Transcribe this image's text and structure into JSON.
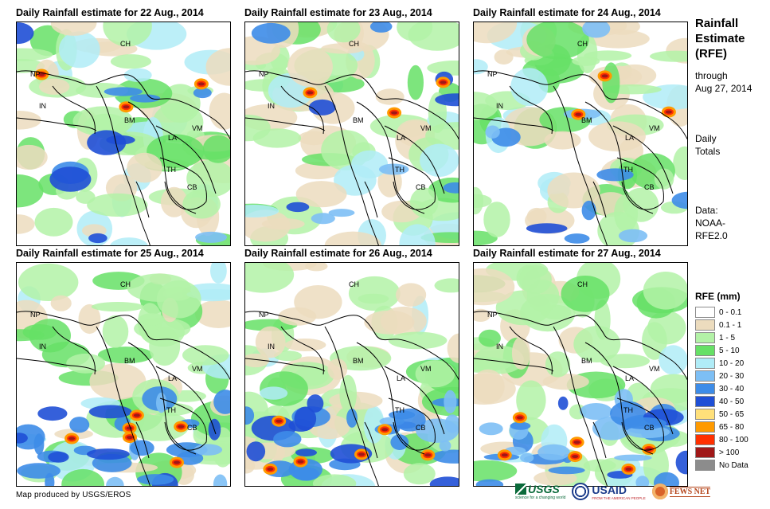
{
  "panels": [
    {
      "title": "Daily Rainfall estimate for 22 Aug., 2014"
    },
    {
      "title": "Daily Rainfall estimate for 23 Aug., 2014"
    },
    {
      "title": "Daily Rainfall estimate for 24 Aug., 2014"
    },
    {
      "title": "Daily Rainfall estimate for 25 Aug., 2014"
    },
    {
      "title": "Daily Rainfall estimate for 26 Aug., 2014"
    },
    {
      "title": "Daily Rainfall estimate for 27 Aug., 2014"
    }
  ],
  "countries": [
    "CH",
    "NP",
    "IN",
    "BM",
    "LA",
    "VM",
    "TH",
    "CB"
  ],
  "side": {
    "title_1": "Rainfall",
    "title_2": "Estimate",
    "title_3": "(RFE)",
    "through": "through",
    "date": "Aug 27, 2014",
    "daily": "Daily",
    "totals": "Totals",
    "data_label": "Data:",
    "source_1": "NOAA-",
    "source_2": "RFE2.0"
  },
  "legend": {
    "title": "RFE (mm)",
    "items": [
      {
        "label": "0 - 0.1",
        "color": "#ffffff"
      },
      {
        "label": "0.1 - 1",
        "color": "#ecdcbe"
      },
      {
        "label": "1 - 5",
        "color": "#b3f2a7"
      },
      {
        "label": "5 - 10",
        "color": "#66e066"
      },
      {
        "label": "10 - 20",
        "color": "#b0ecf7"
      },
      {
        "label": "20 - 30",
        "color": "#7dbff5"
      },
      {
        "label": "30 - 40",
        "color": "#3d8ce8"
      },
      {
        "label": "40 - 50",
        "color": "#1f4fd6"
      },
      {
        "label": "50 - 65",
        "color": "#ffe07a"
      },
      {
        "label": "65 - 80",
        "color": "#ff9a00"
      },
      {
        "label": "80 - 100",
        "color": "#ff3000"
      },
      {
        "label": "> 100",
        "color": "#a01818"
      },
      {
        "label": "No Data",
        "color": "#8c8c8c"
      }
    ]
  },
  "credit": "Map produced by USGS/EROS",
  "logos": {
    "usgs": "USGS",
    "usgs_tag": "science for a changing world",
    "usaid": "USAID",
    "usaid_tag": "FROM THE AMERICAN PEOPLE",
    "fews": "FEWS NET"
  }
}
